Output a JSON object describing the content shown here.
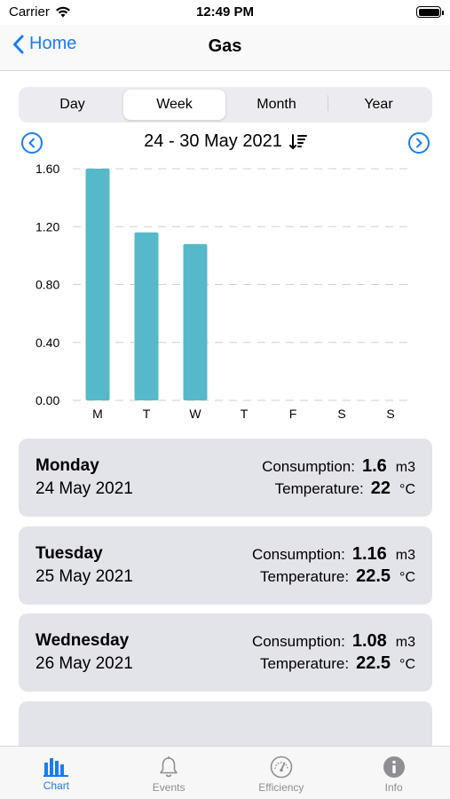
{
  "status": {
    "carrier": "Carrier",
    "time": "12:49 PM"
  },
  "nav": {
    "back_label": "Home",
    "title": "Gas"
  },
  "segments": [
    {
      "label": "Day"
    },
    {
      "label": "Week"
    },
    {
      "label": "Month"
    },
    {
      "label": "Year"
    }
  ],
  "selected_segment": "Week",
  "week": {
    "label": "24 - 30 May 2021"
  },
  "chart_data": {
    "type": "bar",
    "categories": [
      "M",
      "T",
      "W",
      "T",
      "F",
      "S",
      "S"
    ],
    "values": [
      1.6,
      1.16,
      1.08,
      0,
      0,
      0,
      0
    ],
    "ylim": [
      0,
      1.6
    ],
    "yticks": [
      "0.00",
      "0.40",
      "0.80",
      "1.20",
      "1.60"
    ],
    "grid": true,
    "bar_color": "#56b9c9"
  },
  "cards": [
    {
      "day": "Monday",
      "date": "24 May 2021",
      "consumption_label": "Consumption:",
      "consumption": "1.6",
      "consumption_unit": "m3",
      "temperature_label": "Temperature:",
      "temperature": "22",
      "temperature_unit": "°C"
    },
    {
      "day": "Tuesday",
      "date": "25 May 2021",
      "consumption_label": "Consumption:",
      "consumption": "1.16",
      "consumption_unit": "m3",
      "temperature_label": "Temperature:",
      "temperature": "22.5",
      "temperature_unit": "°C"
    },
    {
      "day": "Wednesday",
      "date": "26 May 2021",
      "consumption_label": "Consumption:",
      "consumption": "1.08",
      "consumption_unit": "m3",
      "temperature_label": "Temperature:",
      "temperature": "22.5",
      "temperature_unit": "°C"
    }
  ],
  "tabs": [
    {
      "label": "Chart",
      "icon": "bar-chart-icon"
    },
    {
      "label": "Events",
      "icon": "bell-icon"
    },
    {
      "label": "Efficiency",
      "icon": "gauge-icon"
    },
    {
      "label": "Info",
      "icon": "info-icon"
    }
  ],
  "colors": {
    "accent": "#1a7cf5",
    "card_bg": "#e3e3ea",
    "bar": "#56b9c9"
  }
}
